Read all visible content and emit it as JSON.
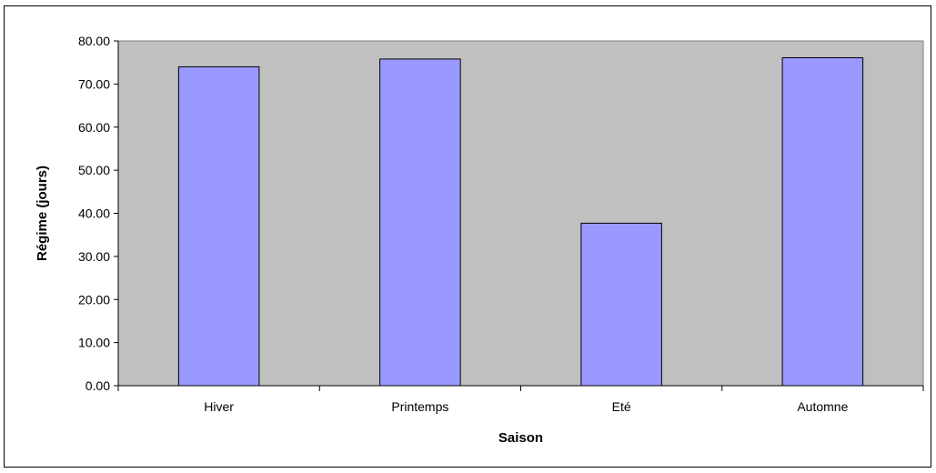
{
  "chart_data": {
    "type": "bar",
    "title": "",
    "categories": [
      "Hiver",
      "Printemps",
      "Eté",
      "Automne"
    ],
    "values": [
      74.0,
      75.8,
      37.7,
      76.1
    ],
    "xlabel": "Saison",
    "ylabel": "Régime (jours)",
    "ylim": [
      0,
      80
    ],
    "yticks": [
      "0.00",
      "10.00",
      "20.00",
      "30.00",
      "40.00",
      "50.00",
      "60.00",
      "70.00",
      "80.00"
    ],
    "grid": false,
    "legend": "none",
    "colors": {
      "bar_fill": "#9999ff",
      "bar_stroke": "#000000",
      "plot_background": "#c0c0c0"
    }
  }
}
